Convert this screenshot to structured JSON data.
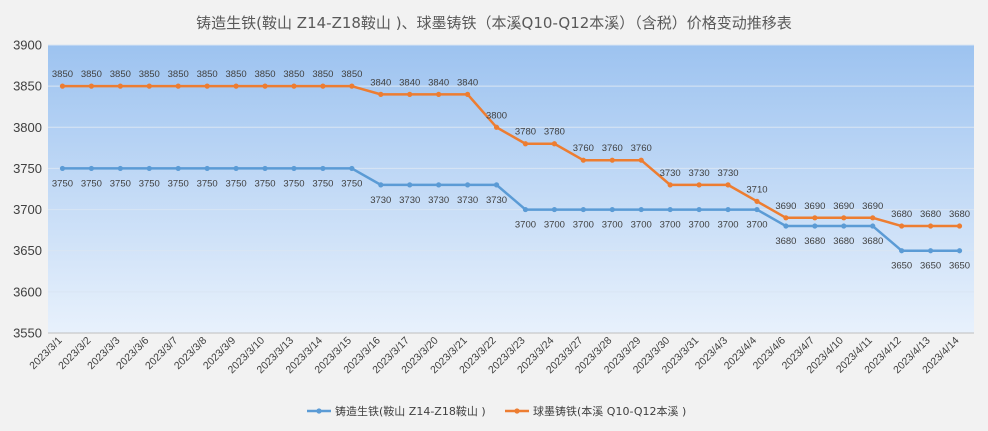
{
  "chart_data": {
    "type": "line",
    "title": "铸造生铁(鞍山 Z14-Z18鞍山 )、球墨铸铁（本溪Q10-Q12本溪）（含税）价格变动推移表",
    "xlabel": "",
    "ylabel": "",
    "ylim": [
      3550,
      3900
    ],
    "yticks": [
      3550,
      3600,
      3650,
      3700,
      3750,
      3800,
      3850,
      3900
    ],
    "grid": true,
    "legend_position": "bottom",
    "categories": [
      "2023/3/1",
      "2023/3/2",
      "2023/3/3",
      "2023/3/6",
      "2023/3/7",
      "2023/3/8",
      "2023/3/9",
      "2023/3/10",
      "2023/3/13",
      "2023/3/14",
      "2023/3/15",
      "2023/3/16",
      "2023/3/17",
      "2023/3/20",
      "2023/3/21",
      "2023/3/22",
      "2023/3/23",
      "2023/3/24",
      "2023/3/27",
      "2023/3/28",
      "2023/3/29",
      "2023/3/30",
      "2023/3/31",
      "2023/4/3",
      "2023/4/4",
      "2023/4/6",
      "2023/4/7",
      "2023/4/10",
      "2023/4/11",
      "2023/4/12",
      "2023/4/13",
      "2023/4/14"
    ],
    "series": [
      {
        "name": "铸造生铁(鞍山 Z14-Z18鞍山 )",
        "color": "#5b9bd5",
        "values": [
          3750,
          3750,
          3750,
          3750,
          3750,
          3750,
          3750,
          3750,
          3750,
          3750,
          3750,
          3730,
          3730,
          3730,
          3730,
          3730,
          3700,
          3700,
          3700,
          3700,
          3700,
          3700,
          3700,
          3700,
          3700,
          3680,
          3680,
          3680,
          3680,
          3650,
          3650,
          3650
        ]
      },
      {
        "name": "球墨铸铁(本溪 Q10-Q12本溪 )",
        "color": "#ed7d31",
        "values": [
          3850,
          3850,
          3850,
          3850,
          3850,
          3850,
          3850,
          3850,
          3850,
          3850,
          3850,
          3840,
          3840,
          3840,
          3840,
          3800,
          3780,
          3780,
          3760,
          3760,
          3760,
          3730,
          3730,
          3730,
          3710,
          3690,
          3690,
          3690,
          3690,
          3680,
          3680,
          3680
        ]
      }
    ]
  }
}
